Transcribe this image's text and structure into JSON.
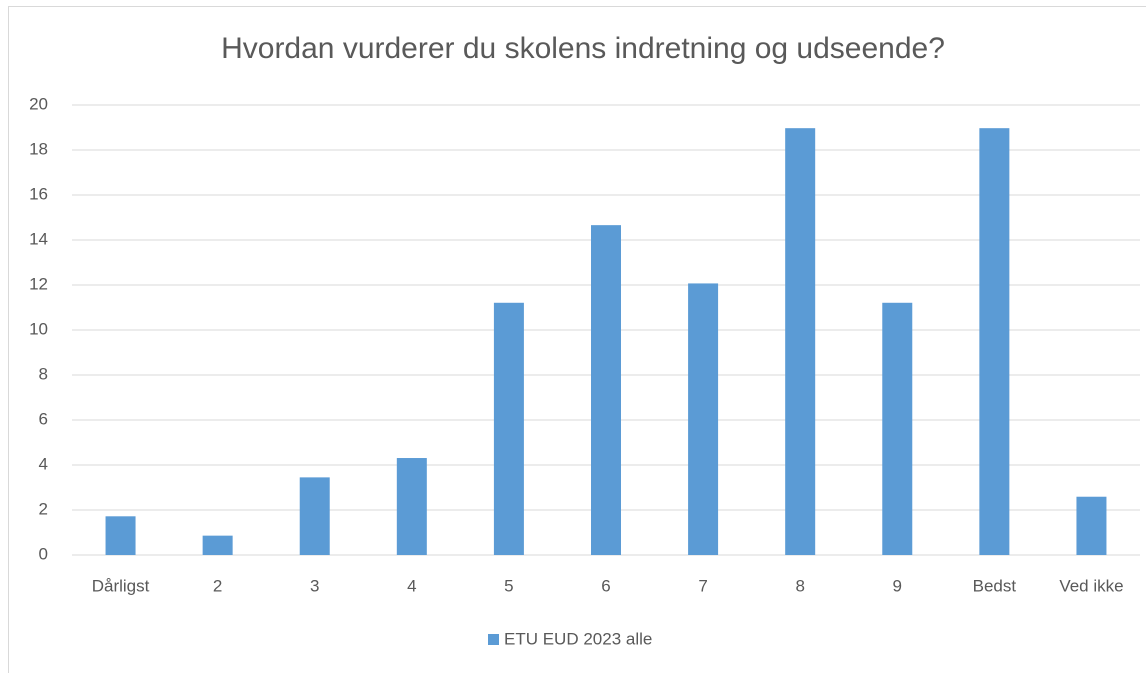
{
  "chart_data": {
    "type": "bar",
    "title": "Hvordan vurderer du skolens indretning og udseende?",
    "categories": [
      "Dårligst",
      "2",
      "3",
      "4",
      "5",
      "6",
      "7",
      "8",
      "9",
      "Bedst",
      "Ved ikke"
    ],
    "series": [
      {
        "name": "ETU EUD 2023 alle",
        "color": "#5b9bd5",
        "values": [
          1.72,
          0.86,
          3.45,
          4.31,
          11.21,
          14.66,
          12.07,
          18.97,
          11.21,
          18.97,
          2.59
        ]
      }
    ],
    "ylim": [
      0,
      20
    ],
    "yticks": [
      0,
      2,
      4,
      6,
      8,
      10,
      12,
      14,
      16,
      18,
      20
    ],
    "grid": true,
    "legend": "bottom"
  }
}
